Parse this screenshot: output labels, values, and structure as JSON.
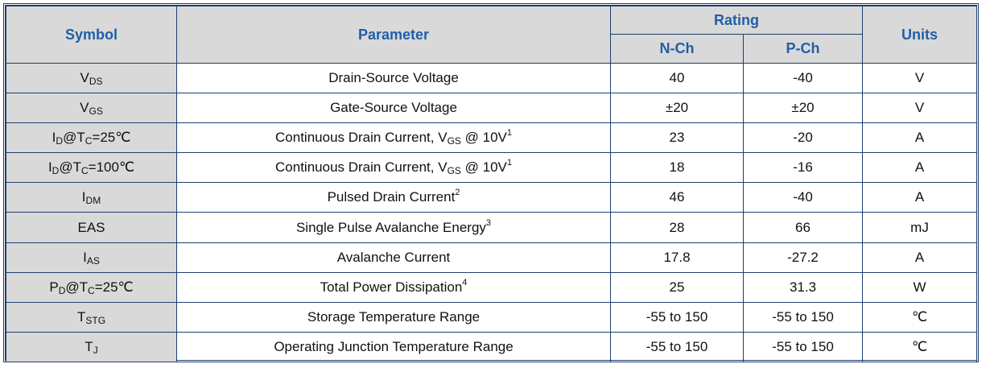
{
  "header": {
    "symbol": "Symbol",
    "parameter": "Parameter",
    "rating": "Rating",
    "nch": "N-Ch",
    "pch": "P-Ch",
    "units": "Units"
  },
  "rows": [
    {
      "sym_base": "V",
      "sym_sub": "DS",
      "sym_tail": "",
      "param": "Drain-Source Voltage",
      "param_sub": "",
      "param_tail": "",
      "param_sup": "",
      "n": "40",
      "p": "-40",
      "unit": "V"
    },
    {
      "sym_base": "V",
      "sym_sub": "GS",
      "sym_tail": "",
      "param": "Gate-Source Voltage",
      "param_sub": "",
      "param_tail": "",
      "param_sup": "",
      "n": "±20",
      "p": "±20",
      "unit": "V"
    },
    {
      "sym_base": "I",
      "sym_sub": "D",
      "sym_tail": "@T",
      "sym_sub2": "C",
      "sym_tail2": "=25℃",
      "param": "Continuous Drain Current, V",
      "param_sub": "GS",
      "param_tail": " @ 10V",
      "param_sup": "1",
      "n": "23",
      "p": "-20",
      "unit": "A"
    },
    {
      "sym_base": "I",
      "sym_sub": "D",
      "sym_tail": "@T",
      "sym_sub2": "C",
      "sym_tail2": "=100℃",
      "param": "Continuous Drain Current, V",
      "param_sub": "GS",
      "param_tail": " @ 10V",
      "param_sup": "1",
      "n": "18",
      "p": "-16",
      "unit": "A"
    },
    {
      "sym_base": "I",
      "sym_sub": "DM",
      "sym_tail": "",
      "param": "Pulsed Drain Current",
      "param_sub": "",
      "param_tail": "",
      "param_sup": "2",
      "n": "46",
      "p": "-40",
      "unit": "A"
    },
    {
      "sym_base": "EAS",
      "sym_sub": "",
      "sym_tail": "",
      "param": "Single Pulse Avalanche Energy",
      "param_sub": "",
      "param_tail": "",
      "param_sup": "3",
      "n": "28",
      "p": "66",
      "unit": "mJ"
    },
    {
      "sym_base": "I",
      "sym_sub": "AS",
      "sym_tail": "",
      "param": "Avalanche Current",
      "param_sub": "",
      "param_tail": "",
      "param_sup": "",
      "n": "17.8",
      "p": "-27.2",
      "unit": "A"
    },
    {
      "sym_base": "P",
      "sym_sub": "D",
      "sym_tail": "@T",
      "sym_sub2": "C",
      "sym_tail2": "=25℃",
      "param": "Total Power Dissipation",
      "param_sub": "",
      "param_tail": "",
      "param_sup": "4",
      "n": "25",
      "p": "31.3",
      "unit": "W"
    },
    {
      "sym_base": "T",
      "sym_sub": "STG",
      "sym_tail": "",
      "param": "Storage Temperature Range",
      "param_sub": "",
      "param_tail": "",
      "param_sup": "",
      "n": "-55 to 150",
      "p": "-55 to 150",
      "unit": "℃"
    },
    {
      "sym_base": "T",
      "sym_sub": "J",
      "sym_tail": "",
      "param": "Operating Junction Temperature Range",
      "param_sub": "",
      "param_tail": "",
      "param_sup": "",
      "n": "-55 to 150",
      "p": "-55 to 150",
      "unit": "℃"
    }
  ]
}
